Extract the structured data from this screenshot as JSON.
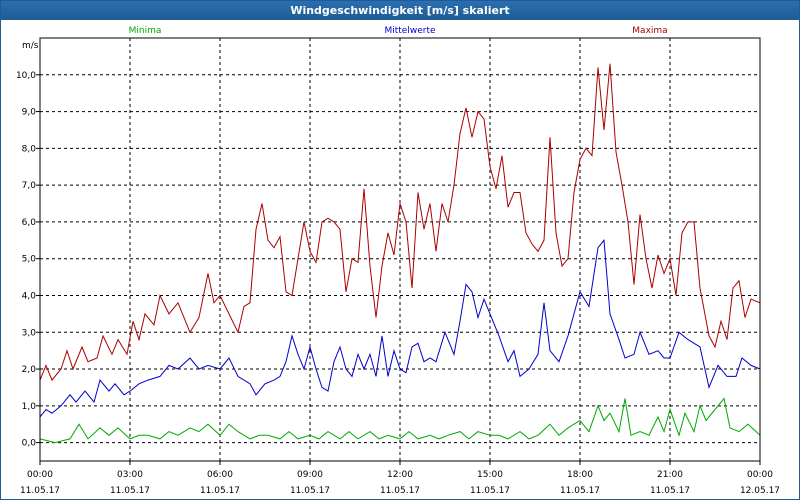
{
  "window": {
    "title": "Windgeschwindigkeit [m/s] skaliert"
  },
  "chart_data": {
    "type": "line",
    "title": "Windgeschwindigkeit [m/s] skaliert",
    "ylabel": "m/s",
    "xlabel": "",
    "ylim": [
      -0.5,
      11.0
    ],
    "xlim": [
      0,
      24
    ],
    "grid": true,
    "legend_position": "top",
    "y_ticks": [
      "0,0",
      "1,0",
      "2,0",
      "3,0",
      "4,0",
      "5,0",
      "6,0",
      "7,0",
      "8,0",
      "9,0",
      "10,0"
    ],
    "x_ticks": [
      {
        "time": "00:00",
        "date": "11.05.17"
      },
      {
        "time": "03:00",
        "date": "11.05.17"
      },
      {
        "time": "06:00",
        "date": "11.05.17"
      },
      {
        "time": "09:00",
        "date": "11.05.17"
      },
      {
        "time": "12:00",
        "date": "11.05.17"
      },
      {
        "time": "15:00",
        "date": "11.05.17"
      },
      {
        "time": "18:00",
        "date": "11.05.17"
      },
      {
        "time": "21:00",
        "date": "11.05.17"
      },
      {
        "time": "00:00",
        "date": "12.05.17"
      }
    ],
    "series": [
      {
        "name": "Minima",
        "color": "#00aa00",
        "points": [
          [
            0.0,
            0.1
          ],
          [
            0.5,
            0.0
          ],
          [
            1.0,
            0.1
          ],
          [
            1.3,
            0.5
          ],
          [
            1.6,
            0.1
          ],
          [
            2.0,
            0.4
          ],
          [
            2.3,
            0.2
          ],
          [
            2.6,
            0.4
          ],
          [
            3.0,
            0.1
          ],
          [
            3.3,
            0.2
          ],
          [
            3.6,
            0.2
          ],
          [
            4.0,
            0.1
          ],
          [
            4.3,
            0.3
          ],
          [
            4.6,
            0.2
          ],
          [
            5.0,
            0.4
          ],
          [
            5.3,
            0.3
          ],
          [
            5.6,
            0.5
          ],
          [
            6.0,
            0.2
          ],
          [
            6.3,
            0.5
          ],
          [
            6.6,
            0.3
          ],
          [
            7.0,
            0.1
          ],
          [
            7.3,
            0.2
          ],
          [
            7.6,
            0.2
          ],
          [
            8.0,
            0.1
          ],
          [
            8.3,
            0.3
          ],
          [
            8.6,
            0.1
          ],
          [
            9.0,
            0.2
          ],
          [
            9.3,
            0.1
          ],
          [
            9.6,
            0.3
          ],
          [
            10.0,
            0.1
          ],
          [
            10.3,
            0.3
          ],
          [
            10.6,
            0.1
          ],
          [
            11.0,
            0.3
          ],
          [
            11.3,
            0.1
          ],
          [
            11.6,
            0.2
          ],
          [
            12.0,
            0.1
          ],
          [
            12.3,
            0.3
          ],
          [
            12.6,
            0.1
          ],
          [
            13.0,
            0.2
          ],
          [
            13.3,
            0.1
          ],
          [
            13.6,
            0.2
          ],
          [
            14.0,
            0.3
          ],
          [
            14.3,
            0.1
          ],
          [
            14.6,
            0.3
          ],
          [
            15.0,
            0.2
          ],
          [
            15.3,
            0.2
          ],
          [
            15.6,
            0.1
          ],
          [
            16.0,
            0.3
          ],
          [
            16.3,
            0.1
          ],
          [
            16.6,
            0.2
          ],
          [
            17.0,
            0.5
          ],
          [
            17.3,
            0.2
          ],
          [
            17.6,
            0.4
          ],
          [
            18.0,
            0.6
          ],
          [
            18.3,
            0.3
          ],
          [
            18.6,
            1.0
          ],
          [
            18.8,
            0.6
          ],
          [
            19.0,
            0.8
          ],
          [
            19.3,
            0.3
          ],
          [
            19.5,
            1.2
          ],
          [
            19.7,
            0.2
          ],
          [
            20.0,
            0.3
          ],
          [
            20.3,
            0.2
          ],
          [
            20.6,
            0.7
          ],
          [
            20.8,
            0.3
          ],
          [
            21.0,
            0.9
          ],
          [
            21.3,
            0.2
          ],
          [
            21.5,
            0.8
          ],
          [
            21.8,
            0.3
          ],
          [
            22.0,
            1.0
          ],
          [
            22.2,
            0.6
          ],
          [
            22.5,
            0.9
          ],
          [
            22.8,
            1.2
          ],
          [
            23.0,
            0.4
          ],
          [
            23.3,
            0.3
          ],
          [
            23.6,
            0.5
          ],
          [
            24.0,
            0.2
          ]
        ]
      },
      {
        "name": "Mittelwerte",
        "color": "#0000cc",
        "points": [
          [
            0.0,
            0.7
          ],
          [
            0.2,
            0.9
          ],
          [
            0.4,
            0.8
          ],
          [
            0.7,
            1.0
          ],
          [
            1.0,
            1.3
          ],
          [
            1.2,
            1.1
          ],
          [
            1.5,
            1.4
          ],
          [
            1.8,
            1.1
          ],
          [
            2.0,
            1.7
          ],
          [
            2.3,
            1.4
          ],
          [
            2.5,
            1.6
          ],
          [
            2.8,
            1.3
          ],
          [
            3.0,
            1.4
          ],
          [
            3.3,
            1.6
          ],
          [
            3.6,
            1.7
          ],
          [
            4.0,
            1.8
          ],
          [
            4.3,
            2.1
          ],
          [
            4.6,
            2.0
          ],
          [
            5.0,
            2.3
          ],
          [
            5.3,
            2.0
          ],
          [
            5.6,
            2.1
          ],
          [
            6.0,
            2.0
          ],
          [
            6.3,
            2.3
          ],
          [
            6.6,
            1.8
          ],
          [
            7.0,
            1.6
          ],
          [
            7.2,
            1.3
          ],
          [
            7.5,
            1.6
          ],
          [
            7.8,
            1.7
          ],
          [
            8.0,
            1.8
          ],
          [
            8.2,
            2.2
          ],
          [
            8.4,
            2.9
          ],
          [
            8.6,
            2.4
          ],
          [
            8.8,
            2.0
          ],
          [
            9.0,
            2.6
          ],
          [
            9.2,
            2.0
          ],
          [
            9.4,
            1.5
          ],
          [
            9.6,
            1.4
          ],
          [
            9.8,
            2.2
          ],
          [
            10.0,
            2.6
          ],
          [
            10.2,
            2.0
          ],
          [
            10.4,
            1.8
          ],
          [
            10.6,
            2.4
          ],
          [
            10.8,
            2.0
          ],
          [
            11.0,
            2.4
          ],
          [
            11.2,
            1.8
          ],
          [
            11.4,
            2.9
          ],
          [
            11.6,
            1.8
          ],
          [
            11.8,
            2.5
          ],
          [
            12.0,
            2.0
          ],
          [
            12.2,
            1.9
          ],
          [
            12.4,
            2.6
          ],
          [
            12.6,
            2.7
          ],
          [
            12.8,
            2.2
          ],
          [
            13.0,
            2.3
          ],
          [
            13.2,
            2.2
          ],
          [
            13.5,
            3.0
          ],
          [
            13.8,
            2.4
          ],
          [
            14.0,
            3.3
          ],
          [
            14.2,
            4.3
          ],
          [
            14.4,
            4.1
          ],
          [
            14.6,
            3.4
          ],
          [
            14.8,
            3.9
          ],
          [
            15.0,
            3.5
          ],
          [
            15.3,
            2.9
          ],
          [
            15.6,
            2.2
          ],
          [
            15.8,
            2.5
          ],
          [
            16.0,
            1.8
          ],
          [
            16.3,
            2.0
          ],
          [
            16.6,
            2.4
          ],
          [
            16.8,
            3.8
          ],
          [
            17.0,
            2.5
          ],
          [
            17.3,
            2.2
          ],
          [
            17.6,
            2.9
          ],
          [
            18.0,
            4.1
          ],
          [
            18.3,
            3.7
          ],
          [
            18.6,
            5.3
          ],
          [
            18.8,
            5.5
          ],
          [
            19.0,
            3.5
          ],
          [
            19.3,
            2.8
          ],
          [
            19.5,
            2.3
          ],
          [
            19.8,
            2.4
          ],
          [
            20.0,
            3.0
          ],
          [
            20.3,
            2.4
          ],
          [
            20.6,
            2.5
          ],
          [
            20.8,
            2.3
          ],
          [
            21.0,
            2.3
          ],
          [
            21.3,
            3.0
          ],
          [
            21.6,
            2.8
          ],
          [
            22.0,
            2.6
          ],
          [
            22.3,
            1.5
          ],
          [
            22.6,
            2.1
          ],
          [
            22.9,
            1.8
          ],
          [
            23.2,
            1.8
          ],
          [
            23.4,
            2.3
          ],
          [
            23.7,
            2.1
          ],
          [
            24.0,
            2.0
          ]
        ]
      },
      {
        "name": "Maxima",
        "color": "#aa0000",
        "points": [
          [
            0.0,
            1.7
          ],
          [
            0.2,
            2.1
          ],
          [
            0.4,
            1.7
          ],
          [
            0.7,
            2.0
          ],
          [
            0.9,
            2.5
          ],
          [
            1.1,
            2.0
          ],
          [
            1.4,
            2.6
          ],
          [
            1.6,
            2.2
          ],
          [
            1.9,
            2.3
          ],
          [
            2.1,
            2.9
          ],
          [
            2.4,
            2.4
          ],
          [
            2.6,
            2.8
          ],
          [
            2.9,
            2.4
          ],
          [
            3.1,
            3.3
          ],
          [
            3.3,
            2.8
          ],
          [
            3.5,
            3.5
          ],
          [
            3.8,
            3.2
          ],
          [
            4.0,
            4.0
          ],
          [
            4.3,
            3.5
          ],
          [
            4.6,
            3.8
          ],
          [
            5.0,
            3.0
          ],
          [
            5.3,
            3.4
          ],
          [
            5.6,
            4.6
          ],
          [
            5.8,
            3.8
          ],
          [
            6.0,
            4.0
          ],
          [
            6.3,
            3.5
          ],
          [
            6.6,
            3.0
          ],
          [
            6.8,
            3.7
          ],
          [
            7.0,
            3.8
          ],
          [
            7.2,
            5.8
          ],
          [
            7.4,
            6.5
          ],
          [
            7.6,
            5.5
          ],
          [
            7.8,
            5.3
          ],
          [
            8.0,
            5.6
          ],
          [
            8.2,
            4.1
          ],
          [
            8.4,
            4.0
          ],
          [
            8.6,
            5.0
          ],
          [
            8.8,
            6.0
          ],
          [
            9.0,
            5.2
          ],
          [
            9.2,
            4.9
          ],
          [
            9.4,
            6.0
          ],
          [
            9.6,
            6.1
          ],
          [
            9.8,
            6.0
          ],
          [
            10.0,
            5.8
          ],
          [
            10.2,
            4.1
          ],
          [
            10.4,
            5.0
          ],
          [
            10.6,
            4.9
          ],
          [
            10.8,
            6.9
          ],
          [
            11.0,
            4.8
          ],
          [
            11.2,
            3.4
          ],
          [
            11.4,
            4.8
          ],
          [
            11.6,
            5.7
          ],
          [
            11.8,
            5.1
          ],
          [
            12.0,
            6.5
          ],
          [
            12.2,
            6.0
          ],
          [
            12.4,
            4.2
          ],
          [
            12.6,
            6.8
          ],
          [
            12.8,
            5.8
          ],
          [
            13.0,
            6.5
          ],
          [
            13.2,
            5.2
          ],
          [
            13.4,
            6.5
          ],
          [
            13.6,
            6.0
          ],
          [
            13.8,
            7.0
          ],
          [
            14.0,
            8.4
          ],
          [
            14.2,
            9.1
          ],
          [
            14.4,
            8.3
          ],
          [
            14.6,
            9.0
          ],
          [
            14.8,
            8.8
          ],
          [
            15.0,
            7.5
          ],
          [
            15.2,
            6.9
          ],
          [
            15.4,
            7.8
          ],
          [
            15.6,
            6.4
          ],
          [
            15.8,
            6.8
          ],
          [
            16.0,
            6.8
          ],
          [
            16.2,
            5.7
          ],
          [
            16.4,
            5.4
          ],
          [
            16.6,
            5.2
          ],
          [
            16.8,
            5.5
          ],
          [
            17.0,
            8.3
          ],
          [
            17.2,
            5.7
          ],
          [
            17.4,
            4.8
          ],
          [
            17.6,
            5.0
          ],
          [
            17.8,
            6.8
          ],
          [
            18.0,
            7.7
          ],
          [
            18.2,
            8.0
          ],
          [
            18.4,
            7.8
          ],
          [
            18.6,
            10.2
          ],
          [
            18.8,
            8.5
          ],
          [
            19.0,
            10.3
          ],
          [
            19.2,
            7.9
          ],
          [
            19.4,
            7.0
          ],
          [
            19.6,
            6.0
          ],
          [
            19.8,
            4.3
          ],
          [
            20.0,
            6.2
          ],
          [
            20.2,
            5.0
          ],
          [
            20.4,
            4.2
          ],
          [
            20.6,
            5.1
          ],
          [
            20.8,
            4.6
          ],
          [
            21.0,
            5.0
          ],
          [
            21.2,
            4.0
          ],
          [
            21.4,
            5.7
          ],
          [
            21.6,
            6.0
          ],
          [
            21.8,
            6.0
          ],
          [
            22.0,
            4.2
          ],
          [
            22.3,
            2.9
          ],
          [
            22.5,
            2.6
          ],
          [
            22.7,
            3.3
          ],
          [
            22.9,
            2.8
          ],
          [
            23.1,
            4.2
          ],
          [
            23.3,
            4.4
          ],
          [
            23.5,
            3.4
          ],
          [
            23.7,
            3.9
          ],
          [
            24.0,
            3.8
          ]
        ]
      }
    ]
  }
}
